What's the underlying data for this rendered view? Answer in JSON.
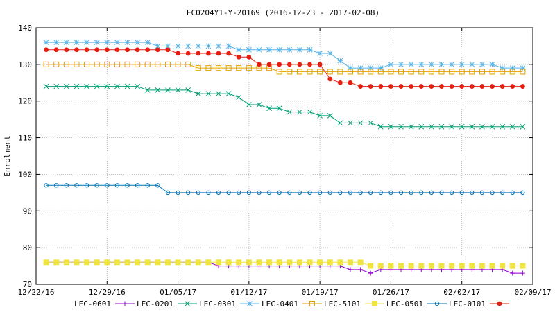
{
  "chart_data": {
    "type": "line",
    "title": "ECO204Y1-Y-20169 (2016-12-23 - 2017-02-08)",
    "xlabel": "",
    "ylabel": "Enrolment",
    "x_start": "2016-12-22",
    "x_end": "2017-02-09",
    "xlim": [
      "12/22/16",
      "02/09/17"
    ],
    "ylim": [
      70,
      140
    ],
    "grid": true,
    "legend_position": "bottom",
    "x_ticks": [
      "12/22/16",
      "12/29/16",
      "01/05/17",
      "01/12/17",
      "01/19/17",
      "01/26/17",
      "02/02/17",
      "02/09/17"
    ],
    "y_ticks": [
      70,
      80,
      90,
      100,
      110,
      120,
      130,
      140
    ],
    "x": [
      "12/23",
      "12/24",
      "12/25",
      "12/26",
      "12/27",
      "12/28",
      "12/29",
      "12/30",
      "12/31",
      "01/01",
      "01/02",
      "01/03",
      "01/04",
      "01/05",
      "01/06",
      "01/07",
      "01/08",
      "01/09",
      "01/10",
      "01/11",
      "01/12",
      "01/13",
      "01/14",
      "01/15",
      "01/16",
      "01/17",
      "01/18",
      "01/19",
      "01/20",
      "01/21",
      "01/22",
      "01/23",
      "01/24",
      "01/25",
      "01/26",
      "01/27",
      "01/28",
      "01/29",
      "01/30",
      "01/31",
      "02/01",
      "02/02",
      "02/03",
      "02/04",
      "02/05",
      "02/06",
      "02/07",
      "02/08"
    ],
    "series": [
      {
        "name": "LEC-0601",
        "color": "#9400d3",
        "marker": "plus",
        "values": [
          76,
          76,
          76,
          76,
          76,
          76,
          76,
          76,
          76,
          76,
          76,
          76,
          76,
          76,
          76,
          76,
          76,
          75,
          75,
          75,
          75,
          75,
          75,
          75,
          75,
          75,
          75,
          75,
          75,
          75,
          74,
          74,
          73,
          74,
          74,
          74,
          74,
          74,
          74,
          74,
          74,
          74,
          74,
          74,
          74,
          74,
          73,
          73
        ]
      },
      {
        "name": "LEC-0201",
        "color": "#009e73",
        "marker": "cross",
        "values": [
          124,
          124,
          124,
          124,
          124,
          124,
          124,
          124,
          124,
          124,
          123,
          123,
          123,
          123,
          123,
          122,
          122,
          122,
          122,
          121,
          119,
          119,
          118,
          118,
          117,
          117,
          117,
          116,
          116,
          114,
          114,
          114,
          114,
          113,
          113,
          113,
          113,
          113,
          113,
          113,
          113,
          113,
          113,
          113,
          113,
          113,
          113,
          113
        ]
      },
      {
        "name": "LEC-0301",
        "color": "#56b4e9",
        "marker": "star",
        "values": [
          136,
          136,
          136,
          136,
          136,
          136,
          136,
          136,
          136,
          136,
          136,
          135,
          135,
          135,
          135,
          135,
          135,
          135,
          135,
          134,
          134,
          134,
          134,
          134,
          134,
          134,
          134,
          133,
          133,
          131,
          129,
          129,
          129,
          129,
          130,
          130,
          130,
          130,
          130,
          130,
          130,
          130,
          130,
          130,
          130,
          129,
          129,
          129
        ]
      },
      {
        "name": "LEC-0401",
        "color": "#e69f00",
        "marker": "box",
        "values": [
          130,
          130,
          130,
          130,
          130,
          130,
          130,
          130,
          130,
          130,
          130,
          130,
          130,
          130,
          130,
          129,
          129,
          129,
          129,
          129,
          129,
          129,
          129,
          128,
          128,
          128,
          128,
          128,
          128,
          128,
          128,
          128,
          128,
          128,
          128,
          128,
          128,
          128,
          128,
          128,
          128,
          128,
          128,
          128,
          128,
          128,
          128,
          128
        ]
      },
      {
        "name": "LEC-5101",
        "color": "#f0e442",
        "marker": "filledbox",
        "values": [
          76,
          76,
          76,
          76,
          76,
          76,
          76,
          76,
          76,
          76,
          76,
          76,
          76,
          76,
          76,
          76,
          76,
          76,
          76,
          76,
          76,
          76,
          76,
          76,
          76,
          76,
          76,
          76,
          76,
          76,
          76,
          76,
          75,
          75,
          75,
          75,
          75,
          75,
          75,
          75,
          75,
          75,
          75,
          75,
          75,
          75,
          75,
          75
        ]
      },
      {
        "name": "LEC-0501",
        "color": "#0072b2",
        "marker": "circle",
        "values": [
          97,
          97,
          97,
          97,
          97,
          97,
          97,
          97,
          97,
          97,
          97,
          97,
          95,
          95,
          95,
          95,
          95,
          95,
          95,
          95,
          95,
          95,
          95,
          95,
          95,
          95,
          95,
          95,
          95,
          95,
          95,
          95,
          95,
          95,
          95,
          95,
          95,
          95,
          95,
          95,
          95,
          95,
          95,
          95,
          95,
          95,
          95,
          95
        ]
      },
      {
        "name": "LEC-0101",
        "color": "#e51e10",
        "marker": "filledcircle",
        "values": [
          134,
          134,
          134,
          134,
          134,
          134,
          134,
          134,
          134,
          134,
          134,
          134,
          134,
          133,
          133,
          133,
          133,
          133,
          133,
          132,
          132,
          130,
          130,
          130,
          130,
          130,
          130,
          130,
          126,
          125,
          125,
          124,
          124,
          124,
          124,
          124,
          124,
          124,
          124,
          124,
          124,
          124,
          124,
          124,
          124,
          124,
          124,
          124
        ]
      }
    ]
  }
}
